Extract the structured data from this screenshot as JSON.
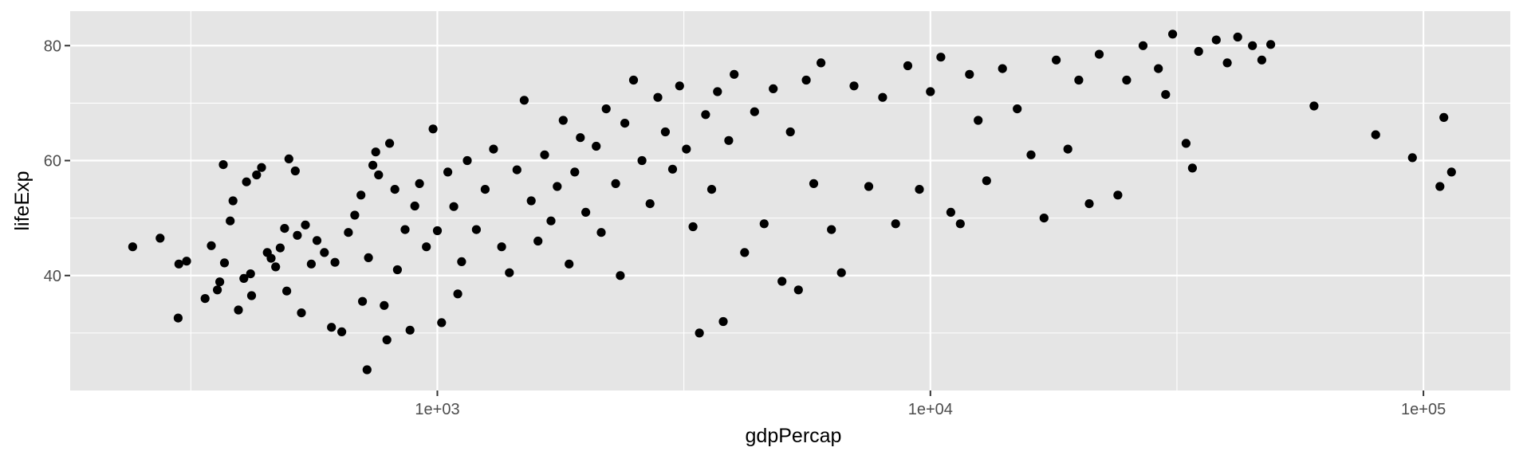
{
  "chart_data": {
    "type": "scatter",
    "title": "",
    "xlabel": "gdpPercap",
    "ylabel": "lifeExp",
    "xscale": "log10",
    "xlim": [
      180,
      150000
    ],
    "ylim": [
      20,
      86
    ],
    "grid": true,
    "legend": "none",
    "x_ticks": [
      1000,
      10000,
      100000
    ],
    "x_tick_labels": [
      "1e+03",
      "1e+04",
      "1e+05"
    ],
    "y_ticks": [
      40,
      60,
      80
    ],
    "y_tick_labels": [
      "40",
      "60",
      "80"
    ],
    "colors": {
      "panel_background": "#e5e5e5",
      "grid": "#ffffff",
      "point": "#000000",
      "tick_label": "#4d4d4d"
    },
    "series": [
      {
        "points": [
          [
            241,
            45.0
          ],
          [
            274,
            46.5
          ],
          [
            298,
            32.6
          ],
          [
            299,
            42.0
          ],
          [
            310,
            42.5
          ],
          [
            338,
            36.0
          ],
          [
            348,
            45.2
          ],
          [
            358,
            37.5
          ],
          [
            362,
            38.9
          ],
          [
            368,
            59.3
          ],
          [
            370,
            42.2
          ],
          [
            380,
            49.5
          ],
          [
            385,
            53.0
          ],
          [
            395,
            34.0
          ],
          [
            405,
            39.5
          ],
          [
            410,
            56.3
          ],
          [
            418,
            40.3
          ],
          [
            420,
            36.5
          ],
          [
            430,
            57.5
          ],
          [
            440,
            58.8
          ],
          [
            452,
            44.0
          ],
          [
            460,
            43.0
          ],
          [
            470,
            41.5
          ],
          [
            480,
            44.8
          ],
          [
            490,
            48.2
          ],
          [
            495,
            37.3
          ],
          [
            500,
            60.3
          ],
          [
            515,
            58.2
          ],
          [
            520,
            47.0
          ],
          [
            530,
            33.5
          ],
          [
            540,
            48.8
          ],
          [
            555,
            42.0
          ],
          [
            570,
            46.1
          ],
          [
            590,
            44.0
          ],
          [
            610,
            31.0
          ],
          [
            620,
            42.3
          ],
          [
            640,
            30.2
          ],
          [
            660,
            47.5
          ],
          [
            680,
            50.5
          ],
          [
            700,
            54.0
          ],
          [
            705,
            35.5
          ],
          [
            720,
            23.6
          ],
          [
            725,
            43.1
          ],
          [
            740,
            59.2
          ],
          [
            750,
            61.5
          ],
          [
            760,
            57.5
          ],
          [
            780,
            34.8
          ],
          [
            790,
            28.8
          ],
          [
            800,
            63.0
          ],
          [
            820,
            55.0
          ],
          [
            830,
            41.0
          ],
          [
            860,
            48.0
          ],
          [
            880,
            30.5
          ],
          [
            900,
            52.1
          ],
          [
            920,
            56.0
          ],
          [
            950,
            45.0
          ],
          [
            980,
            65.5
          ],
          [
            1000,
            47.8
          ],
          [
            1020,
            31.8
          ],
          [
            1050,
            58.0
          ],
          [
            1080,
            52.0
          ],
          [
            1100,
            36.8
          ],
          [
            1120,
            42.4
          ],
          [
            1150,
            60.0
          ],
          [
            1200,
            48.0
          ],
          [
            1250,
            55.0
          ],
          [
            1300,
            62.0
          ],
          [
            1350,
            45.0
          ],
          [
            1400,
            40.5
          ],
          [
            1450,
            58.4
          ],
          [
            1500,
            70.5
          ],
          [
            1550,
            53.0
          ],
          [
            1600,
            46.0
          ],
          [
            1650,
            61.0
          ],
          [
            1700,
            49.5
          ],
          [
            1750,
            55.5
          ],
          [
            1800,
            67.0
          ],
          [
            1850,
            42.0
          ],
          [
            1900,
            58.0
          ],
          [
            1950,
            64.0
          ],
          [
            2000,
            51.0
          ],
          [
            2100,
            62.5
          ],
          [
            2150,
            47.5
          ],
          [
            2200,
            69.0
          ],
          [
            2300,
            56.0
          ],
          [
            2350,
            40.0
          ],
          [
            2400,
            66.5
          ],
          [
            2500,
            74.0
          ],
          [
            2600,
            60.0
          ],
          [
            2700,
            52.5
          ],
          [
            2800,
            71.0
          ],
          [
            2900,
            65.0
          ],
          [
            3000,
            58.5
          ],
          [
            3100,
            73.0
          ],
          [
            3200,
            62.0
          ],
          [
            3300,
            48.5
          ],
          [
            3400,
            30.0
          ],
          [
            3500,
            68.0
          ],
          [
            3600,
            55.0
          ],
          [
            3700,
            72.0
          ],
          [
            3800,
            32.0
          ],
          [
            3900,
            63.5
          ],
          [
            4000,
            75.0
          ],
          [
            4200,
            44.0
          ],
          [
            4400,
            68.5
          ],
          [
            4600,
            49.0
          ],
          [
            4800,
            72.5
          ],
          [
            5000,
            39.0
          ],
          [
            5200,
            65.0
          ],
          [
            5400,
            37.5
          ],
          [
            5600,
            74.0
          ],
          [
            5800,
            56.0
          ],
          [
            6000,
            77.0
          ],
          [
            6300,
            48.0
          ],
          [
            6600,
            40.5
          ],
          [
            7000,
            73.0
          ],
          [
            7500,
            55.5
          ],
          [
            8000,
            71.0
          ],
          [
            8500,
            49.0
          ],
          [
            9000,
            76.5
          ],
          [
            9500,
            55.0
          ],
          [
            10000,
            72.0
          ],
          [
            10500,
            78.0
          ],
          [
            11000,
            51.0
          ],
          [
            11500,
            49.0
          ],
          [
            12000,
            75.0
          ],
          [
            12500,
            67.0
          ],
          [
            13000,
            56.5
          ],
          [
            14000,
            76.0
          ],
          [
            15000,
            69.0
          ],
          [
            16000,
            61.0
          ],
          [
            17000,
            50.0
          ],
          [
            18000,
            77.5
          ],
          [
            19000,
            62.0
          ],
          [
            20000,
            74.0
          ],
          [
            21000,
            52.5
          ],
          [
            22000,
            78.5
          ],
          [
            24000,
            54.0
          ],
          [
            25000,
            74.0
          ],
          [
            27000,
            80.0
          ],
          [
            29000,
            76.0
          ],
          [
            30000,
            71.5
          ],
          [
            31000,
            82.0
          ],
          [
            33000,
            63.0
          ],
          [
            34000,
            58.7
          ],
          [
            35000,
            79.0
          ],
          [
            38000,
            81.0
          ],
          [
            40000,
            77.0
          ],
          [
            42000,
            81.5
          ],
          [
            45000,
            80.0
          ],
          [
            47000,
            77.5
          ],
          [
            49000,
            80.2
          ],
          [
            60000,
            69.5
          ],
          [
            80000,
            64.5
          ],
          [
            95000,
            60.5
          ],
          [
            108000,
            55.5
          ],
          [
            110000,
            67.5
          ],
          [
            114000,
            58.0
          ]
        ]
      }
    ]
  }
}
